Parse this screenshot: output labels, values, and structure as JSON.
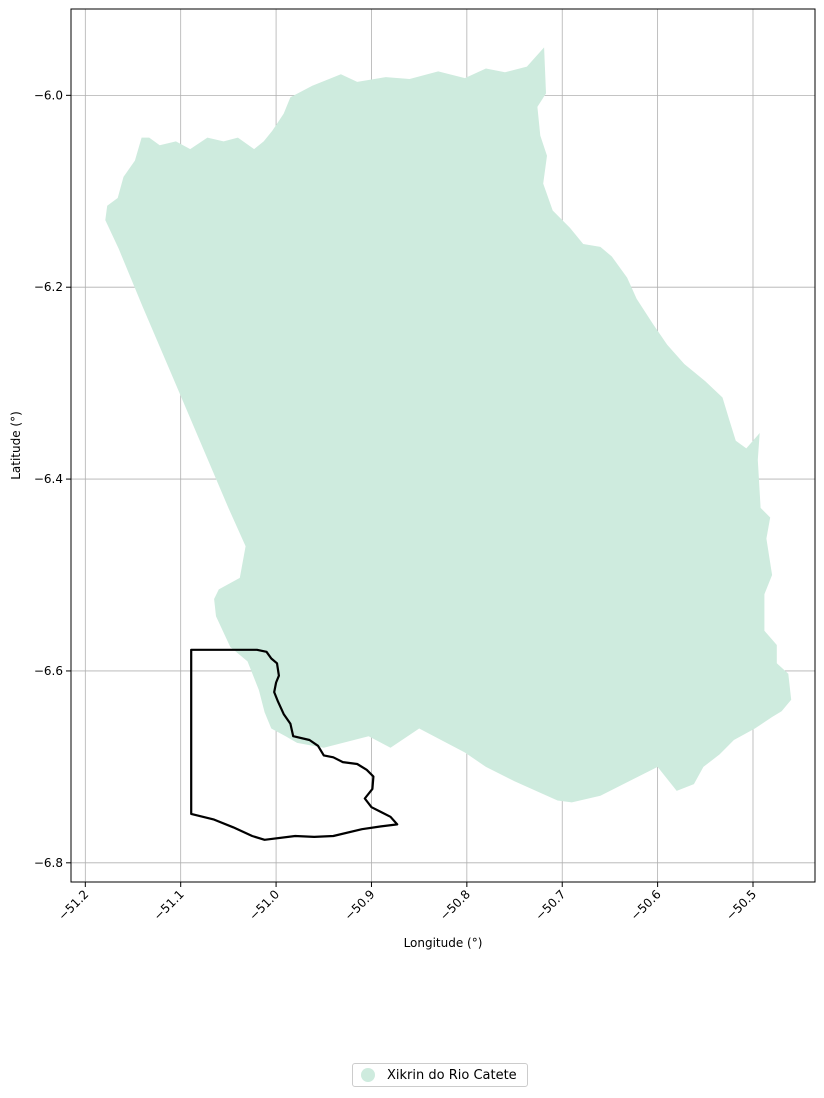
{
  "chart_data": {
    "type": "map",
    "xlabel": "Longitude (°)",
    "ylabel": "Latitude (°)",
    "xlim": [
      -51.215,
      -50.435
    ],
    "ylim": [
      -6.82,
      -5.91
    ],
    "xticks": [
      -51.2,
      -51.1,
      -51.0,
      -50.9,
      -50.8,
      -50.7,
      -50.6,
      -50.5
    ],
    "xtick_labels": [
      "−51.2",
      "−51.1",
      "−51.0",
      "−50.9",
      "−50.8",
      "−50.7",
      "−50.6",
      "−50.5"
    ],
    "yticks": [
      -6.8,
      -6.6,
      -6.4,
      -6.2,
      -6.0
    ],
    "ytick_labels": [
      "−6.8",
      "−6.6",
      "−6.4",
      "−6.2",
      "−6.0"
    ],
    "grid": true,
    "legend_position": "bottom-center",
    "legend": [
      {
        "label": "Xikrin do Rio Catete",
        "color": "#ceebde"
      }
    ],
    "territory_fill": "#ceebde",
    "outline_color": "#000000",
    "territory_polygon": [
      [
        -51.179,
        -6.13
      ],
      [
        -51.177,
        -6.115
      ],
      [
        -51.166,
        -6.107
      ],
      [
        -51.16,
        -6.085
      ],
      [
        -51.148,
        -6.068
      ],
      [
        -51.141,
        -6.044
      ],
      [
        -51.133,
        -6.044
      ],
      [
        -51.122,
        -6.052
      ],
      [
        -51.105,
        -6.048
      ],
      [
        -51.09,
        -6.056
      ],
      [
        -51.072,
        -6.044
      ],
      [
        -51.055,
        -6.048
      ],
      [
        -51.04,
        -6.044
      ],
      [
        -51.023,
        -6.056
      ],
      [
        -51.013,
        -6.048
      ],
      [
        -51.004,
        -6.037
      ],
      [
        -50.992,
        -6.019
      ],
      [
        -50.985,
        -6.002
      ],
      [
        -50.962,
        -5.99
      ],
      [
        -50.932,
        -5.978
      ],
      [
        -50.915,
        -5.986
      ],
      [
        -50.885,
        -5.981
      ],
      [
        -50.86,
        -5.983
      ],
      [
        -50.83,
        -5.975
      ],
      [
        -50.802,
        -5.982
      ],
      [
        -50.78,
        -5.972
      ],
      [
        -50.76,
        -5.976
      ],
      [
        -50.737,
        -5.97
      ],
      [
        -50.719,
        -5.95
      ],
      [
        -50.717,
        -5.998
      ],
      [
        -50.726,
        -6.012
      ],
      [
        -50.723,
        -6.042
      ],
      [
        -50.716,
        -6.063
      ],
      [
        -50.72,
        -6.092
      ],
      [
        -50.71,
        -6.12
      ],
      [
        -50.692,
        -6.138
      ],
      [
        -50.678,
        -6.155
      ],
      [
        -50.66,
        -6.158
      ],
      [
        -50.648,
        -6.168
      ],
      [
        -50.632,
        -6.19
      ],
      [
        -50.622,
        -6.212
      ],
      [
        -50.605,
        -6.238
      ],
      [
        -50.59,
        -6.26
      ],
      [
        -50.572,
        -6.28
      ],
      [
        -50.55,
        -6.298
      ],
      [
        -50.532,
        -6.315
      ],
      [
        -50.525,
        -6.338
      ],
      [
        -50.518,
        -6.36
      ],
      [
        -50.507,
        -6.368
      ],
      [
        -50.493,
        -6.352
      ],
      [
        -50.495,
        -6.38
      ],
      [
        -50.492,
        -6.43
      ],
      [
        -50.482,
        -6.44
      ],
      [
        -50.486,
        -6.462
      ],
      [
        -50.48,
        -6.5
      ],
      [
        -50.488,
        -6.52
      ],
      [
        -50.488,
        -6.558
      ],
      [
        -50.475,
        -6.573
      ],
      [
        -50.475,
        -6.592
      ],
      [
        -50.463,
        -6.603
      ],
      [
        -50.46,
        -6.63
      ],
      [
        -50.47,
        -6.642
      ],
      [
        -50.48,
        -6.648
      ],
      [
        -50.498,
        -6.66
      ],
      [
        -50.52,
        -6.672
      ],
      [
        -50.535,
        -6.687
      ],
      [
        -50.552,
        -6.7
      ],
      [
        -50.562,
        -6.718
      ],
      [
        -50.58,
        -6.725
      ],
      [
        -50.6,
        -6.7
      ],
      [
        -50.62,
        -6.71
      ],
      [
        -50.66,
        -6.73
      ],
      [
        -50.69,
        -6.737
      ],
      [
        -50.705,
        -6.735
      ],
      [
        -50.75,
        -6.715
      ],
      [
        -50.78,
        -6.7
      ],
      [
        -50.802,
        -6.685
      ],
      [
        -50.85,
        -6.66
      ],
      [
        -50.88,
        -6.68
      ],
      [
        -50.903,
        -6.668
      ],
      [
        -50.95,
        -6.68
      ],
      [
        -50.978,
        -6.675
      ],
      [
        -50.99,
        -6.668
      ],
      [
        -51.005,
        -6.66
      ],
      [
        -51.012,
        -6.643
      ],
      [
        -51.018,
        -6.62
      ],
      [
        -51.03,
        -6.59
      ],
      [
        -51.048,
        -6.575
      ],
      [
        -51.063,
        -6.543
      ],
      [
        -51.065,
        -6.525
      ],
      [
        -51.06,
        -6.515
      ],
      [
        -51.038,
        -6.503
      ],
      [
        -51.032,
        -6.47
      ],
      [
        -51.05,
        -6.43
      ],
      [
        -51.08,
        -6.36
      ],
      [
        -51.11,
        -6.29
      ],
      [
        -51.14,
        -6.22
      ],
      [
        -51.165,
        -6.16
      ]
    ],
    "outline_polygon": [
      [
        -51.089,
        -6.578
      ],
      [
        -51.05,
        -6.578
      ],
      [
        -51.02,
        -6.578
      ],
      [
        -51.01,
        -6.58
      ],
      [
        -51.005,
        -6.587
      ],
      [
        -50.999,
        -6.592
      ],
      [
        -50.997,
        -6.605
      ],
      [
        -51.0,
        -6.612
      ],
      [
        -51.002,
        -6.622
      ],
      [
        -50.998,
        -6.632
      ],
      [
        -50.992,
        -6.645
      ],
      [
        -50.985,
        -6.655
      ],
      [
        -50.982,
        -6.668
      ],
      [
        -50.965,
        -6.672
      ],
      [
        -50.956,
        -6.678
      ],
      [
        -50.95,
        -6.688
      ],
      [
        -50.94,
        -6.69
      ],
      [
        -50.93,
        -6.695
      ],
      [
        -50.915,
        -6.697
      ],
      [
        -50.905,
        -6.703
      ],
      [
        -50.898,
        -6.71
      ],
      [
        -50.899,
        -6.723
      ],
      [
        -50.907,
        -6.733
      ],
      [
        -50.9,
        -6.742
      ],
      [
        -50.89,
        -6.747
      ],
      [
        -50.88,
        -6.752
      ],
      [
        -50.873,
        -6.76
      ],
      [
        -50.89,
        -6.762
      ],
      [
        -50.91,
        -6.765
      ],
      [
        -50.94,
        -6.772
      ],
      [
        -50.96,
        -6.773
      ],
      [
        -50.98,
        -6.772
      ],
      [
        -51.012,
        -6.776
      ],
      [
        -51.025,
        -6.772
      ],
      [
        -51.045,
        -6.763
      ],
      [
        -51.065,
        -6.755
      ],
      [
        -51.089,
        -6.749
      ],
      [
        -51.089,
        -6.7
      ],
      [
        -51.089,
        -6.65
      ]
    ]
  }
}
